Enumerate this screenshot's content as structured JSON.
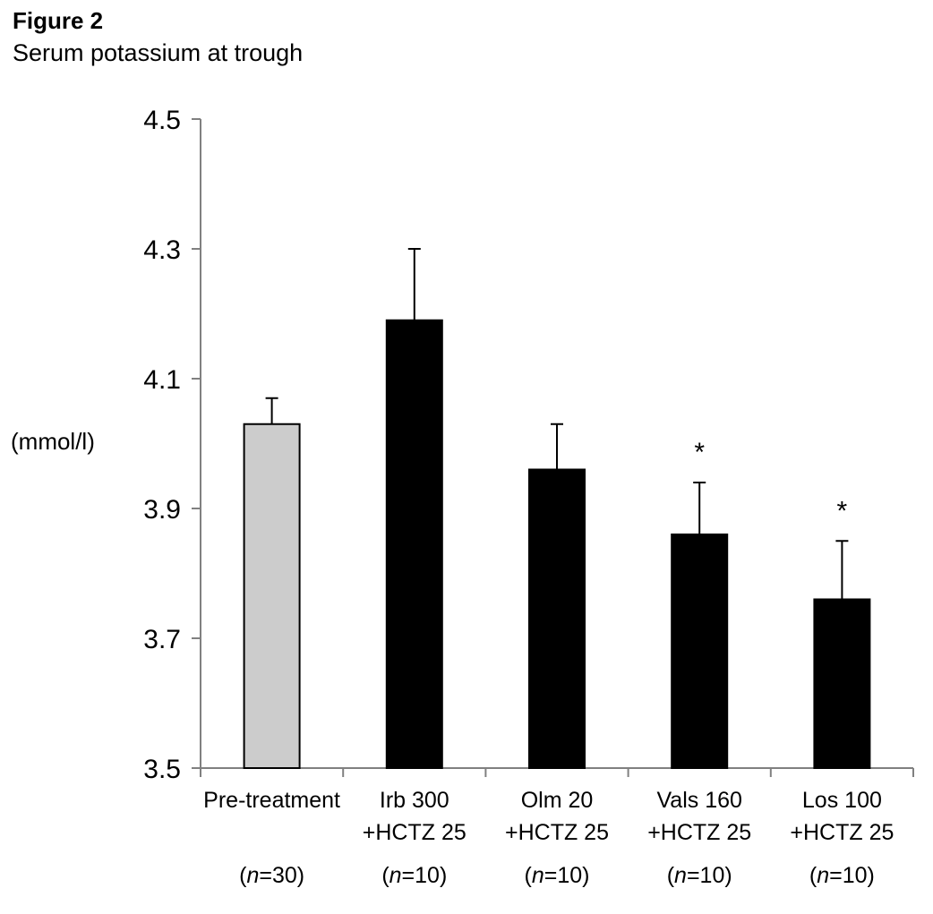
{
  "figure_label": "Figure 2",
  "chart_data": {
    "type": "bar",
    "title": "Serum potassium at trough",
    "ylabel": "(mmol/l)",
    "xlabel": "",
    "ylim": [
      3.5,
      4.5
    ],
    "yticks": [
      3.5,
      3.7,
      3.9,
      4.1,
      4.3,
      4.5
    ],
    "ytick_labels": [
      "3.5",
      "3.7",
      "3.9",
      "4.1",
      "4.3",
      "4.5"
    ],
    "grid": false,
    "categories": [
      {
        "line1": "Pre-treatment",
        "line2": "",
        "n_label": "(n=30)"
      },
      {
        "line1": "Irb 300",
        "line2": "+HCTZ 25",
        "n_label": "(n=10)"
      },
      {
        "line1": "Olm 20",
        "line2": "+HCTZ 25",
        "n_label": "(n=10)"
      },
      {
        "line1": "Vals 160",
        "line2": "+HCTZ 25",
        "n_label": "(n=10)"
      },
      {
        "line1": "Los 100",
        "line2": "+HCTZ 25",
        "n_label": "(n=10)"
      }
    ],
    "values": [
      4.03,
      4.19,
      3.96,
      3.86,
      3.76
    ],
    "error_upper": [
      0.04,
      0.11,
      0.07,
      0.08,
      0.09
    ],
    "significance": [
      "",
      "",
      "",
      "*",
      "*"
    ],
    "bar_colors": [
      "#cccccc",
      "#000000",
      "#000000",
      "#000000",
      "#000000"
    ]
  }
}
